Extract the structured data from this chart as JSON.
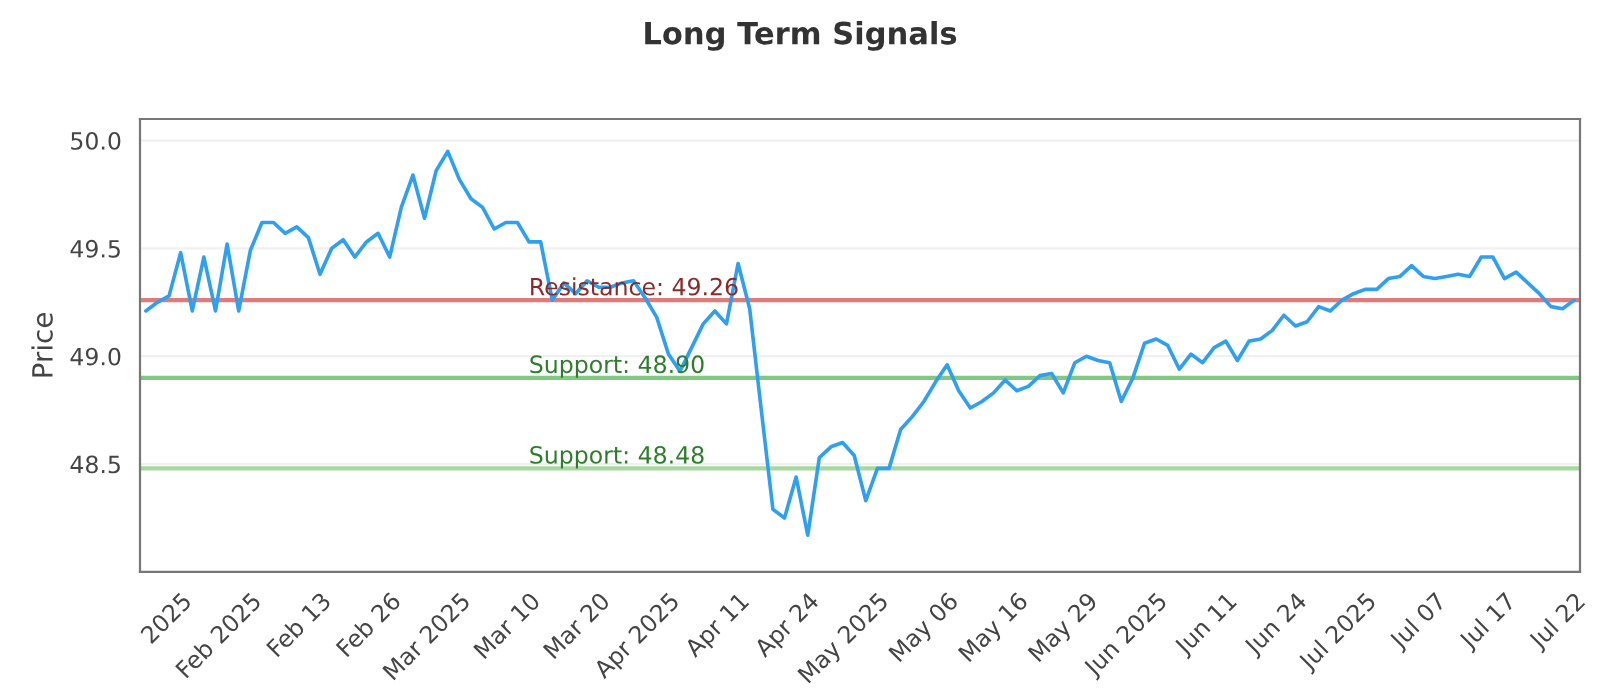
{
  "chart_data": {
    "type": "line",
    "title": "Long Term Signals",
    "ylabel": "Price",
    "categories": [
      null,
      null,
      null,
      "2025",
      null,
      null,
      null,
      null,
      null,
      "Feb 2025",
      null,
      null,
      null,
      null,
      null,
      "Feb 13",
      null,
      null,
      null,
      null,
      null,
      "Feb 26",
      null,
      null,
      null,
      null,
      null,
      "Mar 2025",
      null,
      null,
      null,
      null,
      null,
      "Mar 10",
      null,
      null,
      null,
      null,
      null,
      "Mar 20",
      null,
      null,
      null,
      null,
      null,
      "Apr 2025",
      null,
      null,
      null,
      null,
      null,
      "Apr 11",
      null,
      null,
      null,
      null,
      null,
      "Apr 24",
      null,
      null,
      null,
      null,
      null,
      "May 2025",
      null,
      null,
      null,
      null,
      null,
      "May 06",
      null,
      null,
      null,
      null,
      null,
      "May 16",
      null,
      null,
      null,
      null,
      null,
      "May 29",
      null,
      null,
      null,
      null,
      null,
      "Jun 2025",
      null,
      null,
      null,
      null,
      null,
      "Jun 11",
      null,
      null,
      null,
      null,
      null,
      "Jun 24",
      null,
      null,
      null,
      null,
      null,
      "Jul 2025",
      null,
      null,
      null,
      null,
      null,
      "Jul 07",
      null,
      null,
      null,
      null,
      null,
      "Jul 17",
      null,
      null,
      null,
      null,
      null,
      "Jul 22"
    ],
    "series": [
      {
        "color": "#2f9ff0",
        "values": [
          49.21,
          49.25,
          49.28,
          49.48,
          49.21,
          49.46,
          49.21,
          49.52,
          49.21,
          49.49,
          49.62,
          49.62,
          49.57,
          49.6,
          49.55,
          49.38,
          49.5,
          49.54,
          49.46,
          49.53,
          49.57,
          49.46,
          49.69,
          49.84,
          49.64,
          49.86,
          49.95,
          49.82,
          49.73,
          49.69,
          49.59,
          49.62,
          49.62,
          49.53,
          49.53,
          49.26,
          49.34,
          49.29,
          49.35,
          49.32,
          49.32,
          49.34,
          49.35,
          49.27,
          49.18,
          49.01,
          48.93,
          49.04,
          49.15,
          49.21,
          49.15,
          49.43,
          49.22,
          48.75,
          48.29,
          48.25,
          48.44,
          48.17,
          48.53,
          48.58,
          48.6,
          48.54,
          48.33,
          48.48,
          48.48,
          48.66,
          48.72,
          48.79,
          48.88,
          48.96,
          48.84,
          48.76,
          48.79,
          48.83,
          48.89,
          48.84,
          48.86,
          48.91,
          48.92,
          48.83,
          48.97,
          49.0,
          48.98,
          48.97,
          48.79,
          48.9,
          49.06,
          49.08,
          49.05,
          48.94,
          49.01,
          48.97,
          49.04,
          49.07,
          48.98,
          49.07,
          49.08,
          49.12,
          49.19,
          49.14,
          49.16,
          49.23,
          49.21,
          49.26,
          49.29,
          49.31,
          49.31,
          49.36,
          49.37,
          49.42,
          49.37,
          49.36,
          49.37,
          49.38,
          49.37,
          49.46,
          49.46,
          49.36,
          49.39,
          49.34,
          49.29,
          49.23,
          49.22,
          49.26
        ]
      }
    ],
    "ylim": [
      48.0,
      50.1
    ],
    "yticks": [
      {
        "value": 48.5,
        "label": "48.5"
      },
      {
        "value": 49.0,
        "label": "49.0"
      },
      {
        "value": 49.5,
        "label": "49.5"
      },
      {
        "value": 50.0,
        "label": "50.0"
      }
    ],
    "grid": "y",
    "marker": "none",
    "line_style": "solid",
    "ref_lines": [
      {
        "axis": "y",
        "value": 49.26,
        "label": "Resistance: 49.26",
        "color": "#e07b7b"
      },
      {
        "axis": "y",
        "value": 48.9,
        "label": "Support: 48.90",
        "color": "#80c980"
      },
      {
        "axis": "y",
        "value": 48.48,
        "label": "Support: 48.48",
        "color": "#a8d8a0"
      }
    ]
  }
}
